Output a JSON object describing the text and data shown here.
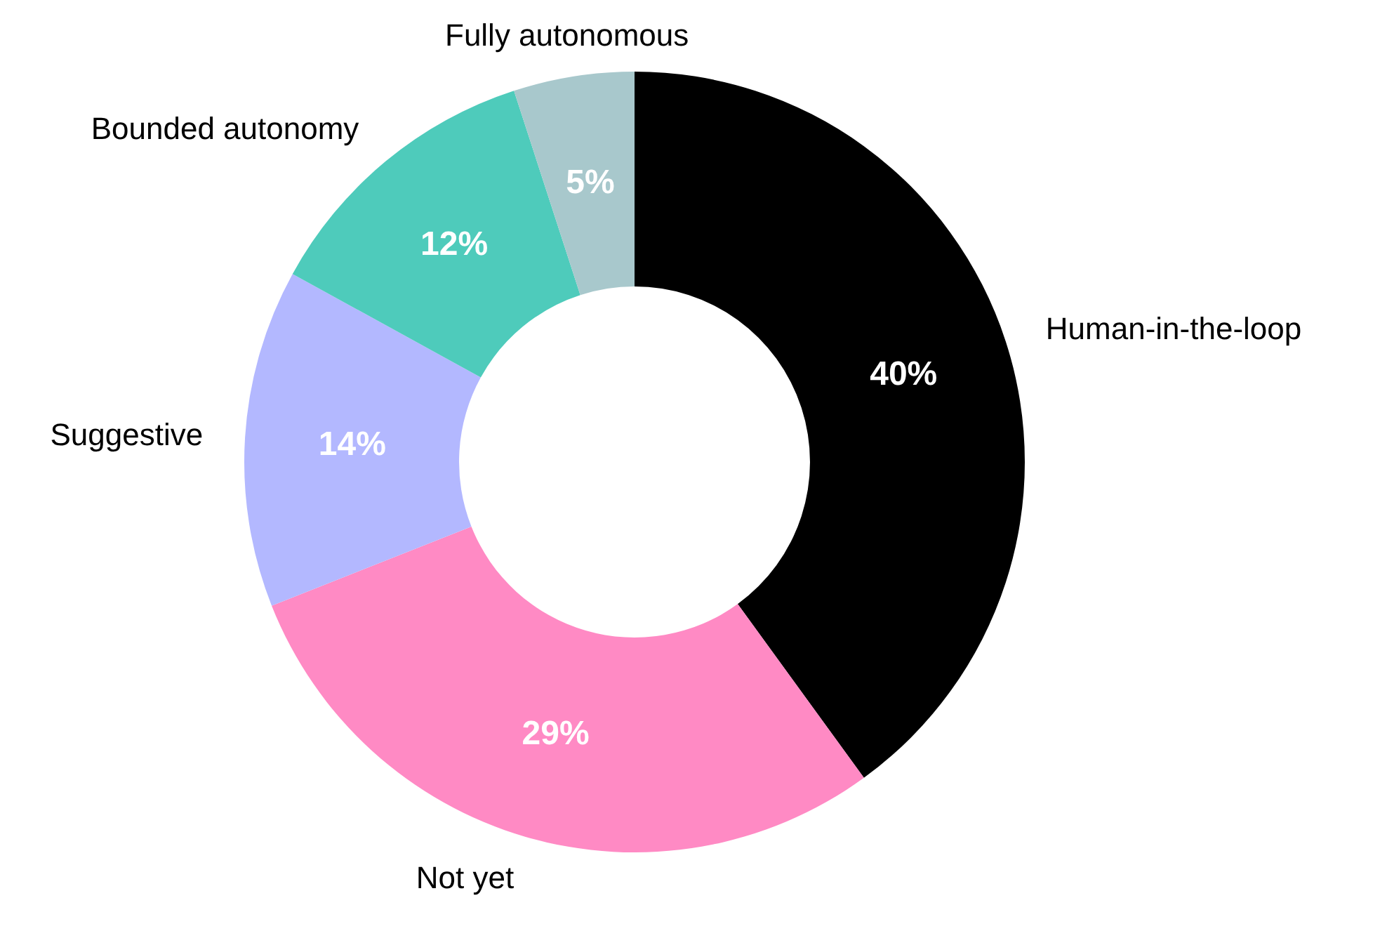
{
  "chart_data": {
    "type": "donut",
    "categories": [
      "Human-in-the-loop",
      "Not yet",
      "Suggestive",
      "Bounded autonomy",
      "Fully autonomous"
    ],
    "values": [
      40,
      29,
      14,
      12,
      5
    ],
    "colors": [
      "#000000",
      "#ff8ac4",
      "#b3b8ff",
      "#4ecbbb",
      "#a8c8cc"
    ],
    "value_labels": [
      "40%",
      "29%",
      "14%",
      "12%",
      "5%"
    ]
  }
}
